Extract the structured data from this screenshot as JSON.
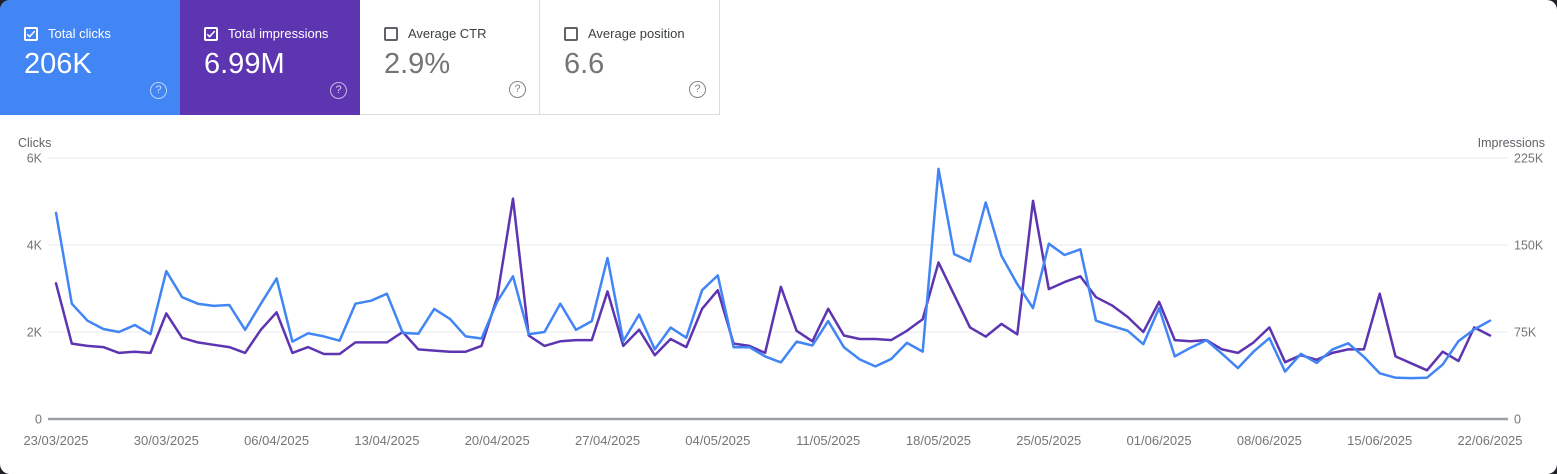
{
  "metrics": [
    {
      "id": "total-clicks",
      "label": "Total clicks",
      "value": "206K",
      "selected": true,
      "bg": "#4285f4"
    },
    {
      "id": "total-impressions",
      "label": "Total impressions",
      "value": "6.99M",
      "selected": true,
      "bg": "#5e35b1"
    },
    {
      "id": "average-ctr",
      "label": "Average CTR",
      "value": "2.9%",
      "selected": false,
      "bg": ""
    },
    {
      "id": "average-position",
      "label": "Average position",
      "value": "6.6",
      "selected": false,
      "bg": ""
    }
  ],
  "icons": {
    "help_glyph": "?",
    "checkbox_checked": "checkmark",
    "colors": {
      "grid": "#e8eaed",
      "zero_line": "#9aa0a6",
      "tick_text": "#757575"
    }
  },
  "chart_data": {
    "type": "line",
    "frequency": "daily",
    "date_start": "23/03/2025",
    "date_end": "22/06/2025",
    "grid": "horizontal",
    "x_labels": [
      "23/03/2025",
      "30/03/2025",
      "06/04/2025",
      "13/04/2025",
      "20/04/2025",
      "27/04/2025",
      "04/05/2025",
      "11/05/2025",
      "18/05/2025",
      "25/05/2025",
      "01/06/2025",
      "08/06/2025",
      "15/06/2025",
      "22/06/2025"
    ],
    "left_axis": {
      "title": "Clicks",
      "ticks": [
        "0",
        "2K",
        "4K",
        "6K"
      ],
      "range": [
        0,
        6000
      ]
    },
    "right_axis": {
      "title": "Impressions",
      "ticks": [
        "0",
        "75K",
        "150K",
        "225K"
      ],
      "range": [
        0,
        225000
      ]
    },
    "series": [
      {
        "name": "Total clicks",
        "axis": "left",
        "color": "#4285f4",
        "values": [
          4740,
          2650,
          2260,
          2070,
          2000,
          2160,
          1950,
          3400,
          2800,
          2650,
          2600,
          2620,
          2050,
          2650,
          3230,
          1780,
          1970,
          1900,
          1800,
          2650,
          2720,
          2880,
          1980,
          1960,
          2530,
          2300,
          1900,
          1850,
          2700,
          3280,
          1950,
          2000,
          2650,
          2050,
          2250,
          3700,
          1790,
          2400,
          1600,
          2100,
          1870,
          2960,
          3300,
          1650,
          1650,
          1440,
          1300,
          1780,
          1690,
          2250,
          1650,
          1370,
          1210,
          1380,
          1750,
          1550,
          5750,
          3790,
          3620,
          4980,
          3750,
          3100,
          2550,
          4030,
          3770,
          3900,
          2260,
          2140,
          2030,
          1720,
          2550,
          1440,
          1640,
          1810,
          1500,
          1170,
          1550,
          1860,
          1090,
          1500,
          1290,
          1600,
          1740,
          1430,
          1050,
          950,
          940,
          950,
          1250,
          1790,
          2060,
          2260
        ]
      },
      {
        "name": "Total impressions",
        "axis": "right",
        "color": "#5e35b1",
        "values": [
          117000,
          65000,
          63000,
          62000,
          57000,
          58000,
          57000,
          91000,
          70000,
          66000,
          64000,
          62000,
          57000,
          77000,
          92000,
          57000,
          62000,
          56000,
          56000,
          66000,
          66000,
          66000,
          75000,
          60000,
          59000,
          58000,
          58000,
          63000,
          105000,
          190000,
          72000,
          63000,
          67000,
          68000,
          68000,
          110000,
          63000,
          77000,
          55000,
          69000,
          62000,
          95000,
          111000,
          65000,
          63000,
          57000,
          114000,
          76000,
          67000,
          95000,
          72000,
          69000,
          69000,
          68000,
          76000,
          86000,
          135000,
          107000,
          79000,
          71000,
          82000,
          73000,
          188000,
          112000,
          118000,
          123000,
          105000,
          98000,
          88000,
          75000,
          101000,
          68000,
          67000,
          68000,
          60000,
          57000,
          66000,
          79000,
          49000,
          55000,
          51000,
          57000,
          60000,
          60000,
          108000,
          54000,
          48000,
          42000,
          58000,
          50000,
          79000,
          72000
        ]
      }
    ]
  }
}
